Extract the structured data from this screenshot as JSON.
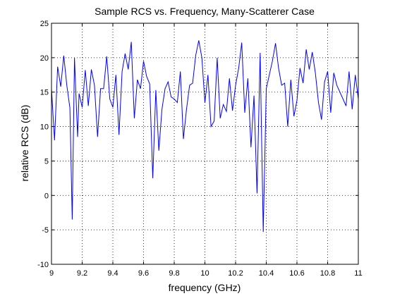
{
  "chart_data": {
    "type": "line",
    "title": "Sample RCS vs. Frequency, Many-Scatterer Case",
    "xlabel": "frequency (GHz)",
    "ylabel": "relative RCS (dB)",
    "xlim": [
      9,
      11
    ],
    "ylim": [
      -10,
      25
    ],
    "xticks": [
      9,
      9.2,
      9.4,
      9.6,
      9.8,
      10,
      10.2,
      10.4,
      10.6,
      10.8,
      11
    ],
    "xtick_labels": [
      "9",
      "9.2",
      "9.4",
      "9.6",
      "9.8",
      "10",
      "10.2",
      "10.4",
      "10.6",
      "10.8",
      "11"
    ],
    "yticks": [
      -10,
      -5,
      0,
      5,
      10,
      15,
      20,
      25
    ],
    "ytick_labels": [
      "-10",
      "-5",
      "0",
      "5",
      "10",
      "15",
      "20",
      "25"
    ],
    "grid": true,
    "grid_style": "dotted",
    "line_color": "#0000ff",
    "series": [
      {
        "x": [
          9.0,
          9.02,
          9.04,
          9.06,
          9.08,
          9.1,
          9.12,
          9.135,
          9.15,
          9.17,
          9.18,
          9.2,
          9.22,
          9.24,
          9.26,
          9.28,
          9.3,
          9.32,
          9.34,
          9.36,
          9.38,
          9.4,
          9.42,
          9.44,
          9.46,
          9.48,
          9.5,
          9.52,
          9.54,
          9.56,
          9.58,
          9.6,
          9.62,
          9.64,
          9.66,
          9.68,
          9.7,
          9.72,
          9.74,
          9.76,
          9.78,
          9.8,
          9.82,
          9.84,
          9.86,
          9.88,
          9.9,
          9.92,
          9.94,
          9.96,
          9.98,
          10.0,
          10.02,
          10.04,
          10.06,
          10.08,
          10.1,
          10.12,
          10.14,
          10.16,
          10.18,
          10.2,
          10.22,
          10.24,
          10.26,
          10.28,
          10.3,
          10.32,
          10.34,
          10.36,
          10.38,
          10.4,
          10.42,
          10.44,
          10.46,
          10.48,
          10.5,
          10.52,
          10.54,
          10.56,
          10.58,
          10.6,
          10.62,
          10.64,
          10.66,
          10.68,
          10.7,
          10.72,
          10.74,
          10.76,
          10.78,
          10.8,
          10.82,
          10.84,
          10.86,
          10.88,
          10.9,
          10.92,
          10.94,
          10.96,
          10.98,
          11.0
        ],
        "y": [
          15.5,
          8.0,
          18.7,
          15.8,
          20.3,
          16.0,
          12.7,
          -3.5,
          20.0,
          8.5,
          14.8,
          12.8,
          18.2,
          13.0,
          18.3,
          16.0,
          8.5,
          15.5,
          15.5,
          20.2,
          14.0,
          12.8,
          17.5,
          8.8,
          18.0,
          20.6,
          18.3,
          22.3,
          11.2,
          16.8,
          15.5,
          19.5,
          17.3,
          16.2,
          2.5,
          15.3,
          6.5,
          12.5,
          15.5,
          16.5,
          14.3,
          14.0,
          13.5,
          18.0,
          8.2,
          12.5,
          16.0,
          16.3,
          20.3,
          22.5,
          20.0,
          13.5,
          17.5,
          10.0,
          10.8,
          20.0,
          11.2,
          13.2,
          12.2,
          17.0,
          12.3,
          16.0,
          18.5,
          22.2,
          12.0,
          17.0,
          7.0,
          14.5,
          0.3,
          20.7,
          -5.3,
          15.5,
          17.5,
          19.5,
          22.1,
          18.5,
          16.0,
          16.3,
          10.0,
          16.8,
          11.5,
          13.8,
          18.5,
          16.3,
          21.2,
          18.3,
          20.8,
          17.8,
          13.5,
          11.0,
          16.5,
          18.0,
          12.0,
          17.8,
          16.0,
          15.0,
          14.0,
          13.0,
          18.0,
          12.5,
          17.5,
          14.0
        ]
      }
    ]
  }
}
